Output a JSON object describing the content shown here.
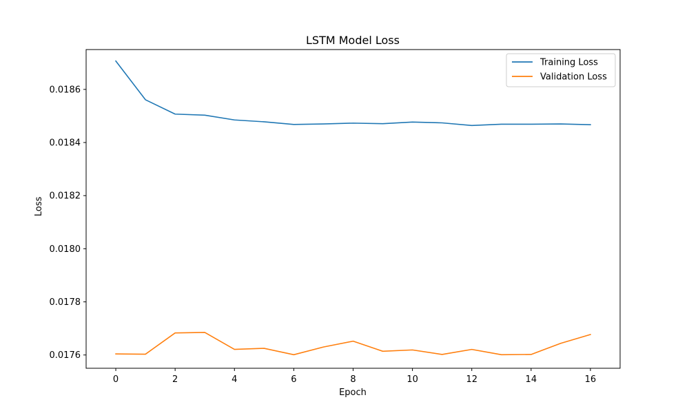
{
  "chart_data": {
    "type": "line",
    "title": "LSTM Model Loss",
    "xlabel": "Epoch",
    "ylabel": "Loss",
    "xlim": [
      -1,
      17
    ],
    "ylim": [
      0.01755,
      0.01875
    ],
    "xticks": [
      0,
      2,
      4,
      6,
      8,
      10,
      12,
      14,
      16
    ],
    "yticks": [
      0.0176,
      0.0178,
      0.018,
      0.0182,
      0.0184,
      0.0186
    ],
    "ytick_labels": [
      "0.0176",
      "0.0178",
      "0.0180",
      "0.0182",
      "0.0184",
      "0.0186"
    ],
    "grid": false,
    "legend_position": "top-right",
    "x": [
      0,
      1,
      2,
      3,
      4,
      5,
      6,
      7,
      8,
      9,
      10,
      11,
      12,
      13,
      14,
      15,
      16
    ],
    "series": [
      {
        "name": "Training Loss",
        "color": "#1f77b4",
        "values": [
          0.018707,
          0.018561,
          0.018507,
          0.018503,
          0.018485,
          0.018478,
          0.018468,
          0.01847,
          0.018473,
          0.018471,
          0.018477,
          0.018474,
          0.018464,
          0.018469,
          0.018469,
          0.01847,
          0.018467
        ]
      },
      {
        "name": "Validation Loss",
        "color": "#ff7f0e",
        "values": [
          0.017604,
          0.017603,
          0.017683,
          0.017685,
          0.017621,
          0.017625,
          0.017601,
          0.01763,
          0.017652,
          0.017614,
          0.017619,
          0.017602,
          0.017621,
          0.017601,
          0.017602,
          0.017644,
          0.017677
        ]
      }
    ]
  }
}
